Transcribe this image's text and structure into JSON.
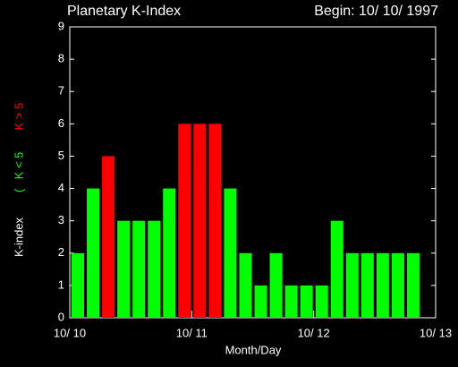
{
  "chart_data": {
    "type": "bar",
    "title": "Planetary K-Index",
    "subtitle": "Begin: 10/ 10/ 1997",
    "x_label": "Month/Day",
    "y_label": "K-index",
    "legend_prefix": "(",
    "x": [
      0,
      0.125,
      0.25,
      0.375,
      0.5,
      0.625,
      0.75,
      0.875,
      1,
      1.125,
      1.25,
      1.375,
      1.5,
      1.625,
      1.75,
      1.875,
      2,
      2.125,
      2.25,
      2.375,
      2.5,
      2.625,
      2.75
    ],
    "series": [
      {
        "name": "K < 5",
        "color": "#00ff00",
        "values": [
          2,
          4,
          null,
          3,
          3,
          3,
          4,
          null,
          null,
          null,
          4,
          2,
          1,
          2,
          1,
          1,
          1,
          3,
          2,
          2,
          2,
          2,
          2
        ]
      },
      {
        "name": "K > 5",
        "color": "#ff0000",
        "values": [
          null,
          null,
          5,
          null,
          null,
          null,
          null,
          6,
          6,
          6,
          null,
          null,
          null,
          null,
          null,
          null,
          null,
          null,
          null,
          null,
          null,
          null,
          null
        ]
      }
    ],
    "xlim": [
      0,
      3
    ],
    "xticks": [
      {
        "value": 0,
        "label": "10/ 10"
      },
      {
        "value": 1,
        "label": "10/ 11"
      },
      {
        "value": 2,
        "label": "10/ 12"
      },
      {
        "value": 3,
        "label": "10/ 13"
      }
    ],
    "ylim": [
      0,
      9
    ],
    "yticks": [
      0,
      1,
      2,
      3,
      4,
      5,
      6,
      7,
      8,
      9
    ]
  }
}
